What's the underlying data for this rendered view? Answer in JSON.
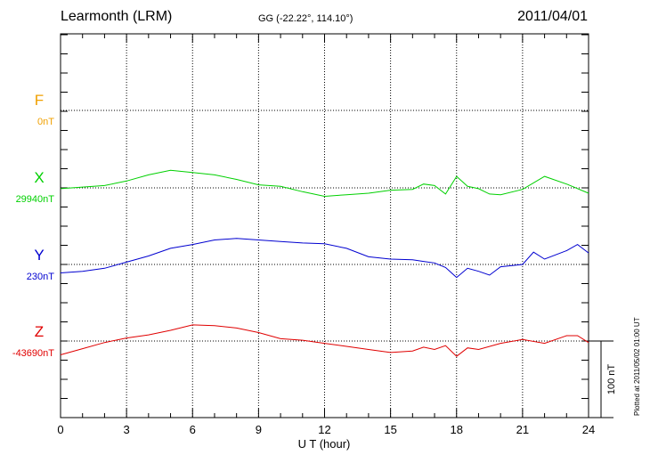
{
  "header": {
    "station": "Learmonth (LRM)",
    "coords": "GG (-22.22°, 114.10°)",
    "date": "2011/04/01"
  },
  "plotted_note": "Plotted at 2011/05/02 01:00 UT",
  "scale_bar_label": "100 nT",
  "colors": {
    "F": "#f0a000",
    "X": "#00d000",
    "Y": "#0000d0",
    "Z": "#e00000"
  },
  "chart_data": {
    "type": "line",
    "xlabel": "U T (hour)",
    "xlim": [
      0,
      24
    ],
    "xticks": [
      "0",
      "3",
      "6",
      "9",
      "12",
      "15",
      "18",
      "21",
      "24"
    ],
    "series": [
      {
        "name": "F",
        "baseline_label": "0nT",
        "baseline_nT": 0,
        "x": [],
        "values": []
      },
      {
        "name": "X",
        "baseline_label": "29940nT",
        "baseline_nT": 29940,
        "x": [
          0,
          1,
          2,
          3,
          4,
          5,
          6,
          7,
          8,
          9,
          10,
          11,
          12,
          13,
          14,
          15,
          16,
          16.5,
          17,
          17.5,
          18,
          18.5,
          19,
          19.5,
          20,
          21,
          22,
          23,
          24
        ],
        "values": [
          29939,
          29941,
          29943,
          29949,
          29957,
          29963,
          29960,
          29957,
          29951,
          29944,
          29942,
          29935,
          29929,
          29931,
          29933,
          29937,
          29938,
          29945,
          29943,
          29932,
          29955,
          29942,
          29939,
          29932,
          29931,
          29938,
          29955,
          29945,
          29933
        ]
      },
      {
        "name": "Y",
        "baseline_label": "230nT",
        "baseline_nT": 230,
        "x": [
          0,
          1,
          2,
          3,
          4,
          5,
          6,
          7,
          8,
          9,
          10,
          11,
          12,
          13,
          14,
          15,
          16,
          16.5,
          17,
          17.5,
          18,
          18.5,
          19,
          19.5,
          20,
          21,
          21.5,
          22,
          23,
          23.5,
          24
        ],
        "values": [
          219,
          221,
          225,
          233,
          241,
          251,
          256,
          262,
          264,
          262,
          260,
          258,
          257,
          251,
          240,
          237,
          236,
          234,
          232,
          226,
          213,
          225,
          221,
          216,
          227,
          230,
          246,
          237,
          248,
          256,
          245
        ]
      },
      {
        "name": "Z",
        "baseline_label": "-43690nT",
        "baseline_nT": -43690,
        "x": [
          0,
          1,
          2,
          3,
          4,
          5,
          6,
          7,
          8,
          9,
          10,
          11,
          12,
          13,
          14,
          15,
          16,
          16.5,
          17,
          17.5,
          18,
          18.5,
          19,
          20,
          21,
          22,
          23,
          23.5,
          24
        ],
        "values": [
          -43708,
          -43700,
          -43692,
          -43686,
          -43682,
          -43676,
          -43669,
          -43670,
          -43673,
          -43679,
          -43687,
          -43689,
          -43693,
          -43697,
          -43701,
          -43705,
          -43703,
          -43698,
          -43701,
          -43696,
          -43710,
          -43699,
          -43701,
          -43693,
          -43688,
          -43693,
          -43683,
          -43683,
          -43692
        ]
      }
    ]
  }
}
